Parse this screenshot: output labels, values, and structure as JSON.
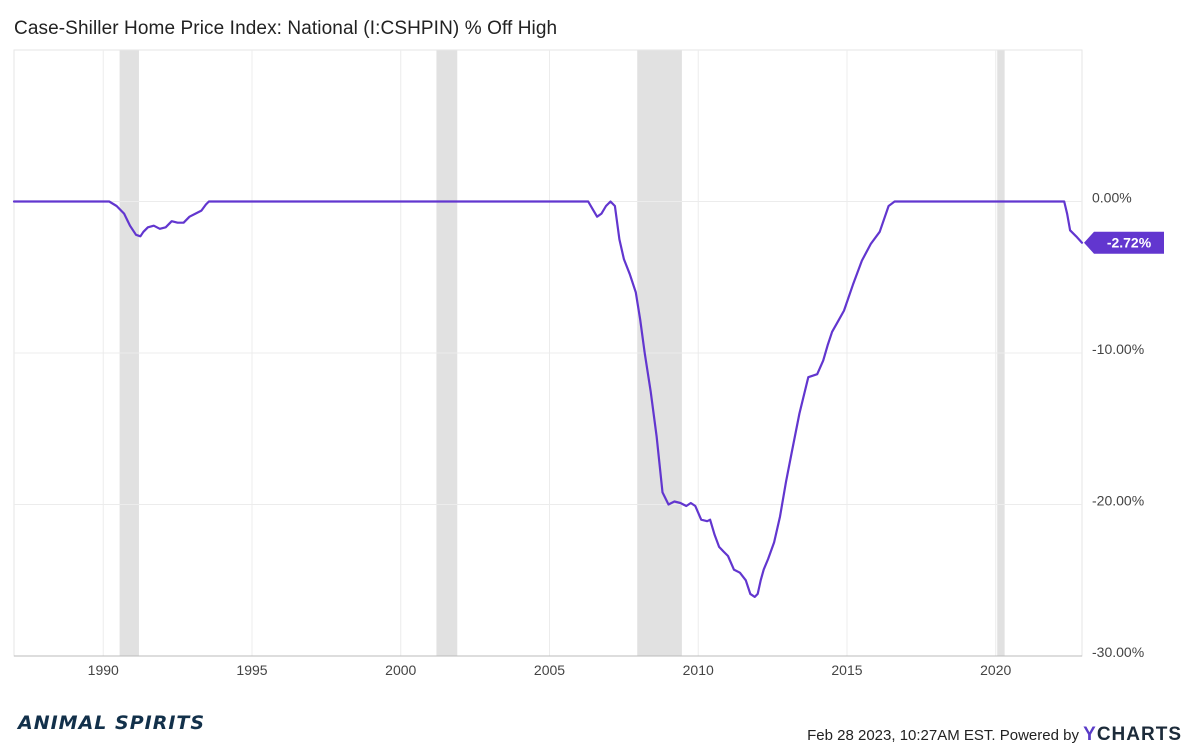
{
  "title": "Case-Shiller Home Price Index: National (I:CSHPIN) % Off High",
  "footer": {
    "date_text": "Feb 28 2023, 10:27AM EST. Powered by",
    "brand_y": "Y",
    "brand_rest": "CHARTS",
    "logo_text": "ANIMAL SPIRITS"
  },
  "colors": {
    "line": "#6236cf",
    "recession": "#e1e1e1",
    "grid": "#ececec",
    "badge": "#6236cf"
  },
  "chart_data": {
    "type": "line",
    "title": "Case-Shiller Home Price Index: National (I:CSHPIN) % Off High",
    "xlabel": "",
    "ylabel": "",
    "xlim": [
      1987.0,
      2022.9
    ],
    "ylim": [
      -30,
      10
    ],
    "x_ticks": [
      1990,
      1995,
      2000,
      2005,
      2010,
      2015,
      2020
    ],
    "x_tick_labels": [
      "1990",
      "1995",
      "2000",
      "2005",
      "2010",
      "2015",
      "2020"
    ],
    "y_ticks": [
      0,
      -10,
      -20,
      -30
    ],
    "y_tick_labels": [
      "0.00%",
      "-10.00%",
      "-20.00%",
      "-30.00%"
    ],
    "recessions": [
      [
        1990.55,
        1991.2
      ],
      [
        2001.2,
        2001.9
      ],
      [
        2007.95,
        2009.45
      ],
      [
        2020.05,
        2020.3
      ]
    ],
    "last_value_label": "-2.72%",
    "grid": true,
    "series": [
      {
        "name": "",
        "x": [
          1987.0,
          1990.2,
          1990.45,
          1990.7,
          1990.9,
          1991.1,
          1991.25,
          1991.35,
          1991.5,
          1991.7,
          1991.9,
          1992.1,
          1992.3,
          1992.5,
          1992.7,
          1992.9,
          1993.1,
          1993.3,
          1993.45,
          1993.55,
          2006.3,
          2006.45,
          2006.6,
          2006.75,
          2006.9,
          2007.05,
          2007.2,
          2007.35,
          2007.5,
          2007.7,
          2007.9,
          2008.05,
          2008.2,
          2008.4,
          2008.6,
          2008.8,
          2009.0,
          2009.2,
          2009.4,
          2009.6,
          2009.75,
          2009.9,
          2010.1,
          2010.3,
          2010.4,
          2010.55,
          2010.7,
          2010.85,
          2011.0,
          2011.2,
          2011.4,
          2011.6,
          2011.75,
          2011.9,
          2012.0,
          2012.1,
          2012.2,
          2012.35,
          2012.55,
          2012.75,
          2012.95,
          2013.15,
          2013.4,
          2013.7,
          2014.0,
          2014.2,
          2014.35,
          2014.5,
          2014.7,
          2014.9,
          2015.2,
          2015.5,
          2015.8,
          2016.1,
          2016.4,
          2016.6,
          2016.8,
          2017.0,
          2022.3,
          2022.4,
          2022.5,
          2022.7,
          2022.9
        ],
        "values": [
          0,
          0,
          -0.3,
          -0.8,
          -1.6,
          -2.2,
          -2.3,
          -2.0,
          -1.7,
          -1.6,
          -1.8,
          -1.7,
          -1.3,
          -1.4,
          -1.4,
          -1.0,
          -0.8,
          -0.6,
          -0.2,
          0,
          0,
          -0.5,
          -1.0,
          -0.8,
          -0.3,
          0,
          -0.3,
          -2.5,
          -3.8,
          -4.8,
          -6.0,
          -7.8,
          -10.0,
          -12.5,
          -15.5,
          -19.2,
          -20.0,
          -19.8,
          -19.9,
          -20.1,
          -19.9,
          -20.1,
          -21.0,
          -21.1,
          -21.0,
          -22.0,
          -22.8,
          -23.1,
          -23.4,
          -24.3,
          -24.5,
          -25.0,
          -25.9,
          -26.1,
          -25.9,
          -25.0,
          -24.3,
          -23.6,
          -22.5,
          -20.8,
          -18.5,
          -16.5,
          -14.0,
          -11.6,
          -11.4,
          -10.5,
          -9.5,
          -8.6,
          -7.9,
          -7.2,
          -5.5,
          -3.9,
          -2.8,
          -2.0,
          -0.3,
          0,
          0,
          0,
          0,
          -0.8,
          -1.9,
          -2.3,
          -2.72
        ]
      }
    ]
  }
}
